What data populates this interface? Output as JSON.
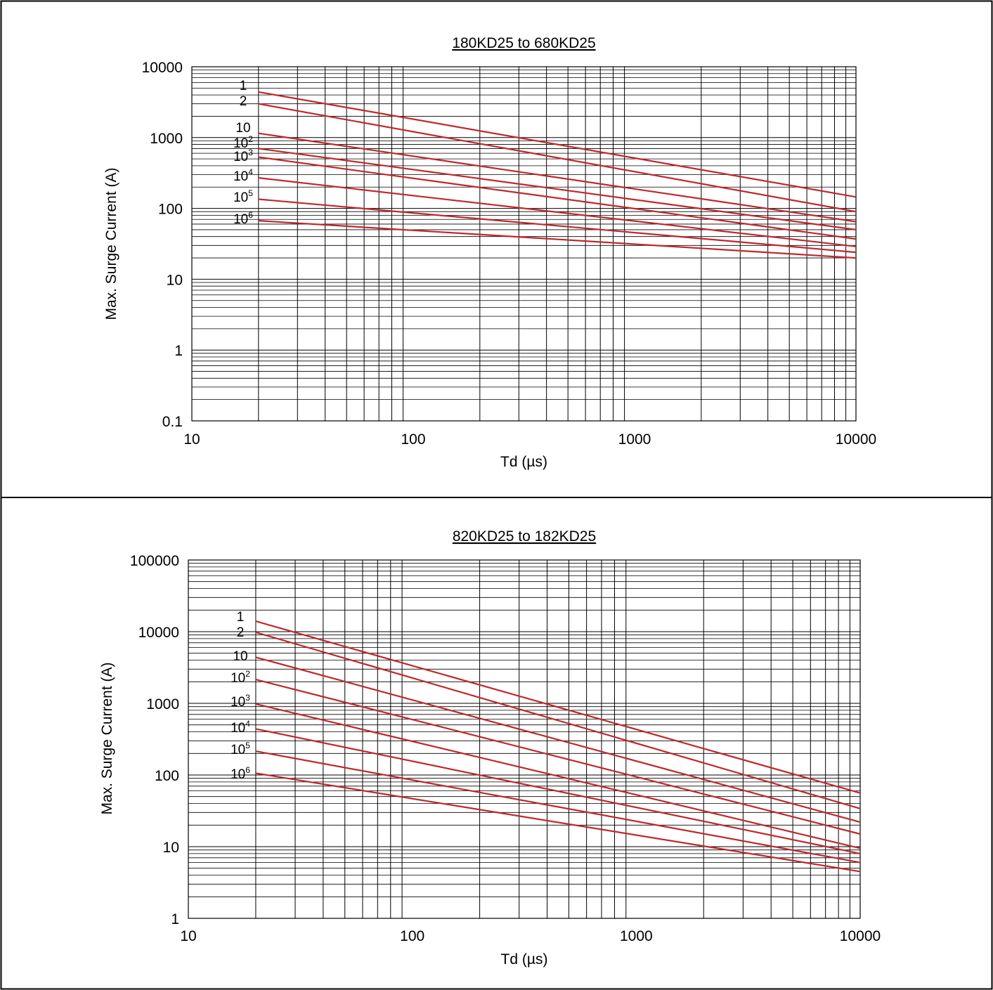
{
  "chart_data": [
    {
      "type": "line",
      "title": "180KD25 to 680KD25",
      "xlabel": "Td (µs)",
      "ylabel": "Max. Surge Current (A)",
      "xscale": "log",
      "yscale": "log",
      "xlim": [
        10,
        10000
      ],
      "ylim": [
        0.1,
        10000
      ],
      "xticks": [
        "10",
        "100",
        "1000",
        "10000"
      ],
      "yticks": [
        "0.1",
        "1",
        "10",
        "100",
        "1000",
        "10000"
      ],
      "grid": true,
      "series": [
        {
          "name": "1",
          "base": "1",
          "exp": "",
          "x": [
            20,
            10000
          ],
          "y": [
            4400,
            145
          ]
        },
        {
          "name": "2",
          "base": "2",
          "exp": "",
          "x": [
            20,
            10000
          ],
          "y": [
            3000,
            90
          ]
        },
        {
          "name": "10",
          "base": "10",
          "exp": "",
          "x": [
            20,
            10000
          ],
          "y": [
            1150,
            65
          ]
        },
        {
          "name": "10²",
          "base": "10",
          "exp": "2",
          "x": [
            20,
            10000
          ],
          "y": [
            700,
            50
          ]
        },
        {
          "name": "10³",
          "base": "10",
          "exp": "3",
          "x": [
            20,
            10000
          ],
          "y": [
            530,
            37
          ]
        },
        {
          "name": "10⁴",
          "base": "10",
          "exp": "4",
          "x": [
            20,
            10000
          ],
          "y": [
            270,
            29
          ]
        },
        {
          "name": "10⁵",
          "base": "10",
          "exp": "5",
          "x": [
            20,
            10000
          ],
          "y": [
            135,
            24
          ]
        },
        {
          "name": "10⁶",
          "base": "10",
          "exp": "6",
          "x": [
            20,
            10000
          ],
          "y": [
            67,
            20
          ]
        }
      ],
      "line_color": "#c0282d"
    },
    {
      "type": "line",
      "title": "820KD25 to 182KD25",
      "xlabel": "Td (µs)",
      "ylabel": "Max. Surge Current (A)",
      "xscale": "log",
      "yscale": "log",
      "xlim": [
        10,
        10000
      ],
      "ylim": [
        1,
        100000
      ],
      "xticks": [
        "10",
        "100",
        "1000",
        "10000"
      ],
      "yticks": [
        "1",
        "10",
        "100",
        "1000",
        "10000",
        "100000"
      ],
      "grid": true,
      "series": [
        {
          "name": "1",
          "base": "1",
          "exp": "",
          "x": [
            20,
            10000
          ],
          "y": [
            14000,
            56
          ]
        },
        {
          "name": "2",
          "base": "2",
          "exp": "",
          "x": [
            20,
            10000
          ],
          "y": [
            9800,
            34
          ]
        },
        {
          "name": "10",
          "base": "10",
          "exp": "",
          "x": [
            20,
            10000
          ],
          "y": [
            4400,
            22
          ]
        },
        {
          "name": "10²",
          "base": "10",
          "exp": "2",
          "x": [
            20,
            10000
          ],
          "y": [
            2150,
            15
          ]
        },
        {
          "name": "10³",
          "base": "10",
          "exp": "3",
          "x": [
            20,
            10000
          ],
          "y": [
            980,
            9.5
          ]
        },
        {
          "name": "10⁴",
          "base": "10",
          "exp": "4",
          "x": [
            20,
            10000
          ],
          "y": [
            440,
            8
          ]
        },
        {
          "name": "10⁵",
          "base": "10",
          "exp": "5",
          "x": [
            20,
            10000
          ],
          "y": [
            215,
            6
          ]
        },
        {
          "name": "10⁶",
          "base": "10",
          "exp": "6",
          "x": [
            20,
            10000
          ],
          "y": [
            106,
            4.5
          ]
        }
      ],
      "line_color": "#c0282d"
    }
  ]
}
